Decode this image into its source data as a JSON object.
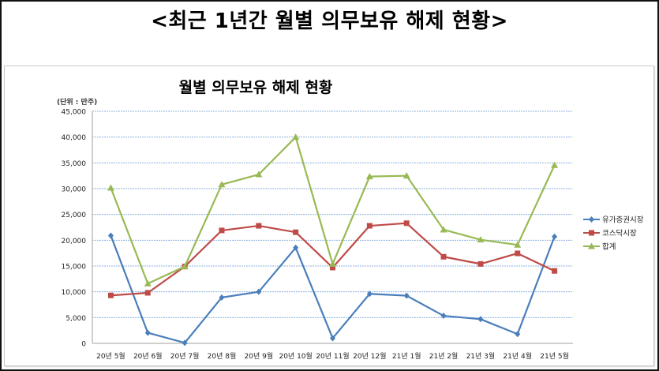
{
  "page": {
    "title": "<최근 1년간 월별 의무보유 해제 현황>"
  },
  "chart_data": {
    "type": "line",
    "title": "월별 의무보유 해제 현황",
    "unit_label": "(단위 : 만주)",
    "xlabel": "",
    "ylabel": "",
    "ylim": [
      0,
      45000
    ],
    "y_ticks": [
      0,
      5000,
      10000,
      15000,
      20000,
      25000,
      30000,
      35000,
      40000,
      45000
    ],
    "y_tick_labels": [
      "0",
      "5,000",
      "10,000",
      "15,000",
      "20,000",
      "25,000",
      "30,000",
      "35,000",
      "40,000",
      "45,000"
    ],
    "grid": true,
    "legend_position": "right",
    "categories": [
      "20년 5월",
      "20년 6월",
      "20년 7월",
      "20년 8월",
      "20년 9월",
      "20년 10월",
      "20년 11월",
      "20년 12월",
      "21년 1월",
      "21년 2월",
      "21년 3월",
      "21년 4월",
      "21년 5월"
    ],
    "series": [
      {
        "name": "유가증권시장",
        "color": "#4a7ebb",
        "marker": "diamond",
        "values": [
          20900,
          2050,
          100,
          8900,
          10000,
          18550,
          1000,
          9600,
          9250,
          5350,
          4700,
          1800,
          20700
        ]
      },
      {
        "name": "코스닥시장",
        "color": "#be4b48",
        "marker": "square",
        "values": [
          9300,
          9800,
          14900,
          21900,
          22800,
          21550,
          14700,
          22800,
          23300,
          16800,
          15400,
          17450,
          14050
        ]
      },
      {
        "name": "합계",
        "color": "#98b954",
        "marker": "triangle",
        "values": [
          30150,
          11600,
          14900,
          30800,
          32750,
          40000,
          15400,
          32350,
          32500,
          22050,
          20100,
          19100,
          34550
        ]
      }
    ]
  },
  "colors": {
    "gridline": "#8db3e2",
    "axis": "#bfbfbf"
  }
}
